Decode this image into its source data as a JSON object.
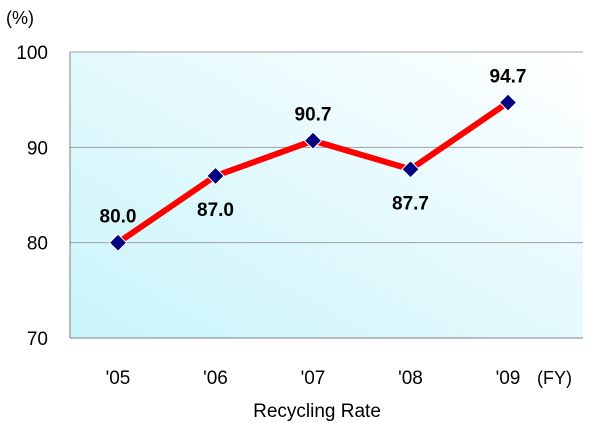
{
  "chart_data": {
    "type": "line",
    "title": "Recycling Rate",
    "y_unit": "(%)",
    "x_unit": "(FY)",
    "categories": [
      "'05",
      "'06",
      "'07",
      "'08",
      "'09"
    ],
    "series": [
      {
        "values": [
          80.0,
          87.0,
          90.7,
          87.7,
          94.7
        ],
        "data_labels": [
          "80.0",
          "87.0",
          "90.7",
          "87.7",
          "94.7"
        ]
      }
    ],
    "ylim": [
      70,
      100
    ],
    "yticks": [
      70,
      80,
      90,
      100
    ],
    "grid": true,
    "line_color": "#ff0000",
    "marker_color": "#000080",
    "plot_background": [
      "#c8f4fa",
      "#ffffff"
    ],
    "gridline_color": "#a0a0a0"
  }
}
